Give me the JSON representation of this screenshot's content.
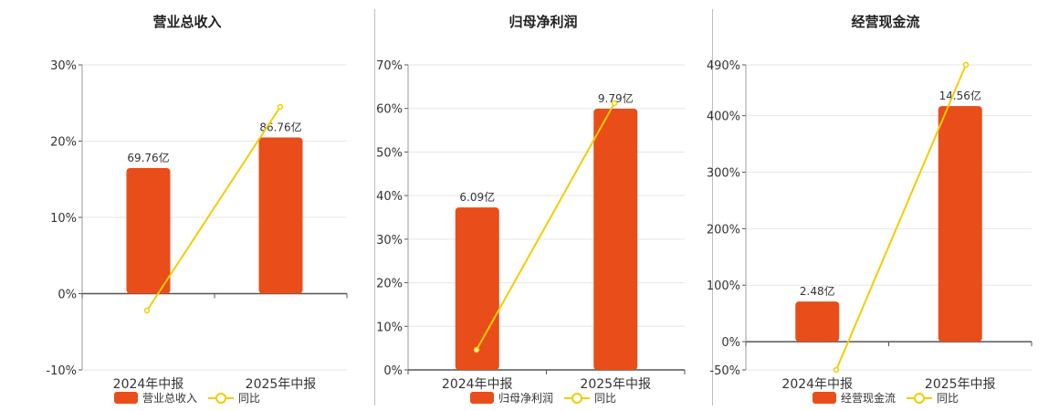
{
  "colors": {
    "bar": "#E84D1A",
    "line": "#F2CD00",
    "grid": "#e6e6e6",
    "axis": "#555555"
  },
  "chart_data": [
    {
      "type": "bar",
      "title": "营业总收入",
      "categories": [
        "2024年中报",
        "2025年中报"
      ],
      "series": [
        {
          "name": "营业总收入",
          "type": "bar",
          "value_labels": [
            "69.76亿",
            "86.76亿"
          ],
          "values": [
            69.76,
            86.76
          ]
        },
        {
          "name": "同比",
          "type": "line",
          "values": [
            -2.2,
            24.4
          ]
        }
      ],
      "y_ticks": [
        "30%",
        "20%",
        "10%",
        "0%",
        "-10%"
      ],
      "ylim": [
        -10,
        30
      ],
      "grid": true,
      "legend": "bottom"
    },
    {
      "type": "bar",
      "title": "归母净利润",
      "categories": [
        "2024年中报",
        "2025年中报"
      ],
      "series": [
        {
          "name": "归母净利润",
          "type": "bar",
          "value_labels": [
            "6.09亿",
            "9.79亿"
          ],
          "values": [
            6.09,
            9.79
          ]
        },
        {
          "name": "同比",
          "type": "line",
          "values": [
            4.5,
            60.9
          ]
        }
      ],
      "y_ticks": [
        "70%",
        "60%",
        "50%",
        "40%",
        "30%",
        "20%",
        "10%",
        "0%"
      ],
      "ylim": [
        0,
        70
      ],
      "grid": true,
      "legend": "bottom"
    },
    {
      "type": "bar",
      "title": "经营现金流",
      "categories": [
        "2024年中报",
        "2025年中报"
      ],
      "series": [
        {
          "name": "经营现金流",
          "type": "bar",
          "value_labels": [
            "2.48亿",
            "14.56亿"
          ],
          "values": [
            2.48,
            14.56
          ]
        },
        {
          "name": "同比",
          "type": "line",
          "values": [
            -50,
            490
          ]
        }
      ],
      "y_ticks": [
        "490%",
        "400%",
        "300%",
        "200%",
        "100%",
        "0%",
        "-50%"
      ],
      "ylim": [
        -50,
        490
      ],
      "grid": true,
      "legend": "bottom"
    }
  ]
}
